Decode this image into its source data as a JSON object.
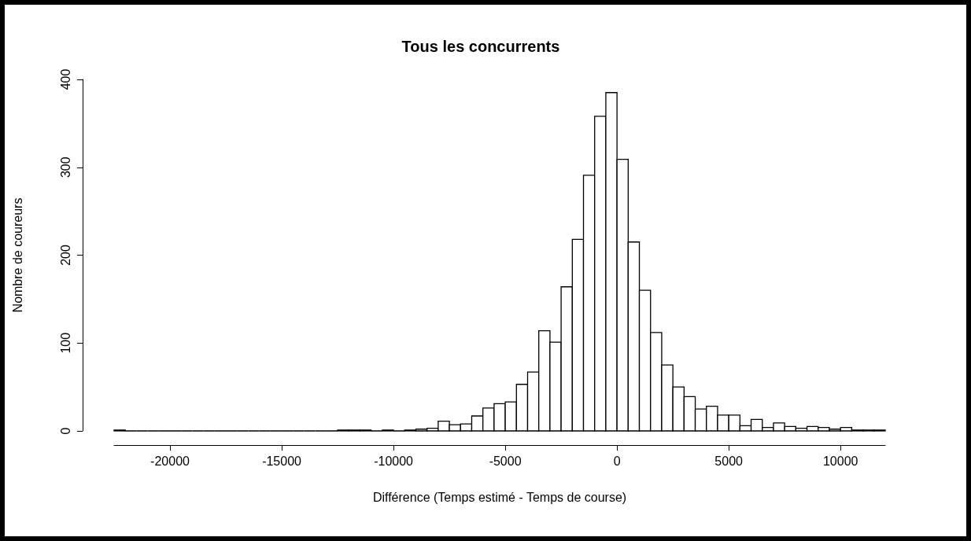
{
  "chart_data": {
    "type": "histogram",
    "title": "Tous les concurrents",
    "xlabel": "Différence (Temps estimé - Temps de course)",
    "ylabel": "Nombre de coureurs",
    "bins": [
      -22500,
      -22000,
      -21500,
      -21000,
      -20500,
      -20000,
      -19500,
      -19000,
      -18500,
      -18000,
      -17500,
      -17000,
      -16500,
      -16000,
      -15500,
      -15000,
      -14500,
      -14000,
      -13500,
      -13000,
      -12500,
      -12000,
      -11500,
      -11000,
      -10500,
      -10000,
      -9500,
      -9000,
      -8500,
      -8000,
      -7500,
      -7000,
      -6500,
      -6000,
      -5500,
      -5000,
      -4500,
      -4000,
      -3500,
      -3000,
      -2500,
      -2000,
      -1500,
      -1000,
      -500,
      0,
      500,
      1000,
      1500,
      2000,
      2500,
      3000,
      3500,
      4000,
      4500,
      5000,
      5500,
      6000,
      6500,
      7000,
      7500,
      8000,
      8500,
      9000,
      9500,
      10000,
      10500,
      11000,
      11500,
      12000
    ],
    "values": [
      1,
      0,
      0,
      0,
      0,
      0,
      0,
      0,
      0,
      0,
      0,
      0,
      0,
      0,
      0,
      0,
      0,
      0,
      0,
      0,
      1,
      1,
      1,
      0,
      1,
      0,
      1,
      2,
      3,
      11,
      7,
      8,
      17,
      26,
      31,
      33,
      53,
      67,
      114,
      101,
      164,
      218,
      291,
      358,
      385,
      309,
      215,
      160,
      112,
      75,
      50,
      39,
      25,
      28,
      18,
      18,
      6,
      13,
      4,
      9,
      5,
      3,
      5,
      4,
      2,
      4,
      1,
      1,
      1
    ],
    "xlim": [
      -22500,
      12000
    ],
    "xticks": [
      -20000,
      -15000,
      -10000,
      -5000,
      0,
      5000,
      10000
    ],
    "ylim": [
      0,
      400
    ],
    "yticks": [
      0,
      100,
      200,
      300,
      400
    ],
    "grid": false
  }
}
